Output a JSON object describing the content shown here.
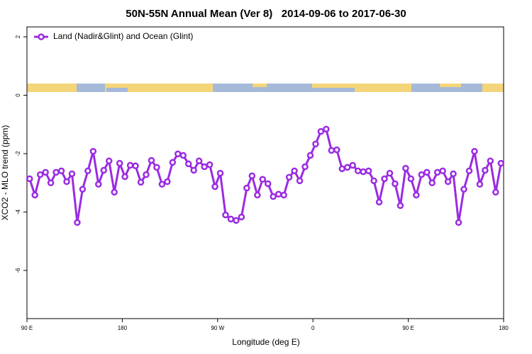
{
  "chart_data": {
    "type": "line",
    "title": "50N-55N Annual Mean (Ver 8)   2014-09-06 to 2017-06-30",
    "x_label": "Longitude (deg E)",
    "y_label": "XCO2 - MLO trend (ppm)",
    "x": [
      92.5,
      97.5,
      102.5,
      107.5,
      112.5,
      117.5,
      122.5,
      127.5,
      132.5,
      137.5,
      142.5,
      147.5,
      152.5,
      157.5,
      162.5,
      167.5,
      172.5,
      177.5,
      182.5,
      187.5,
      192.5,
      197.5,
      202.5,
      207.5,
      212.5,
      217.5,
      222.5,
      227.5,
      232.5,
      237.5,
      242.5,
      247.5,
      252.5,
      257.5,
      262.5,
      267.5,
      272.5,
      277.5,
      282.5,
      287.5,
      292.5,
      297.5,
      302.5,
      307.5,
      312.5,
      317.5,
      322.5,
      327.5,
      332.5,
      337.5,
      342.5,
      347.5,
      352.5,
      357.5,
      362.5,
      367.5,
      372.5,
      377.5,
      382.5,
      387.5,
      392.5,
      397.5,
      402.5,
      407.5,
      412.5,
      417.5,
      422.5,
      427.5,
      432.5,
      437.5,
      442.5,
      447.5,
      452.5,
      457.5,
      462.5,
      467.5,
      472.5,
      477.5,
      482.5,
      487.5,
      492.5,
      497.5,
      502.5,
      507.5,
      512.5,
      517.5,
      522.5,
      527.5,
      532.5,
      537.5
    ],
    "series": [
      {
        "name": "Land (Nadir&Glint) and Ocean (Glint)",
        "color": "#9b2be2",
        "values": [
          -2.86,
          -3.42,
          -2.72,
          -2.64,
          -3.0,
          -2.64,
          -2.59,
          -2.96,
          -2.69,
          -4.36,
          -3.22,
          -2.59,
          -1.92,
          -3.05,
          -2.57,
          -2.25,
          -3.32,
          -2.33,
          -2.79,
          -2.4,
          -2.42,
          -2.98,
          -2.72,
          -2.23,
          -2.47,
          -3.05,
          -2.96,
          -2.3,
          -2.01,
          -2.06,
          -2.35,
          -2.57,
          -2.25,
          -2.45,
          -2.38,
          -3.13,
          -2.67,
          -4.1,
          -4.24,
          -4.29,
          -4.17,
          -3.18,
          -2.76,
          -3.42,
          -2.88,
          -3.03,
          -3.47,
          -3.39,
          -3.42,
          -2.81,
          -2.59,
          -2.93,
          -2.45,
          -2.06,
          -1.67,
          -1.24,
          -1.16,
          -1.89,
          -1.87,
          -2.52,
          -2.47,
          -2.4,
          -2.59,
          -2.62,
          -2.59,
          -2.93,
          -3.66,
          -2.86,
          -2.67,
          -3.03,
          -3.78,
          -2.5,
          -2.86,
          -3.42,
          -2.72,
          -2.64,
          -3.0,
          -2.64,
          -2.59,
          -2.96,
          -2.69,
          -4.36,
          -3.22,
          -2.59,
          -1.92,
          -3.05,
          -2.57,
          -2.25,
          -3.32,
          -2.33
        ]
      }
    ],
    "xlim": [
      90,
      540
    ],
    "xticks": [
      {
        "value": 90,
        "label": "90 E"
      },
      180,
      {
        "value": 270,
        "label": "90 W"
      },
      {
        "value": 360,
        "label": "0"
      },
      {
        "value": 450,
        "label": "90 E"
      },
      {
        "value": 540,
        "label": "180"
      }
    ],
    "ylim": [
      -7.65,
      2.34
    ],
    "yticks": [
      2,
      0,
      -2,
      -4,
      -6
    ],
    "legend": "top-left"
  }
}
